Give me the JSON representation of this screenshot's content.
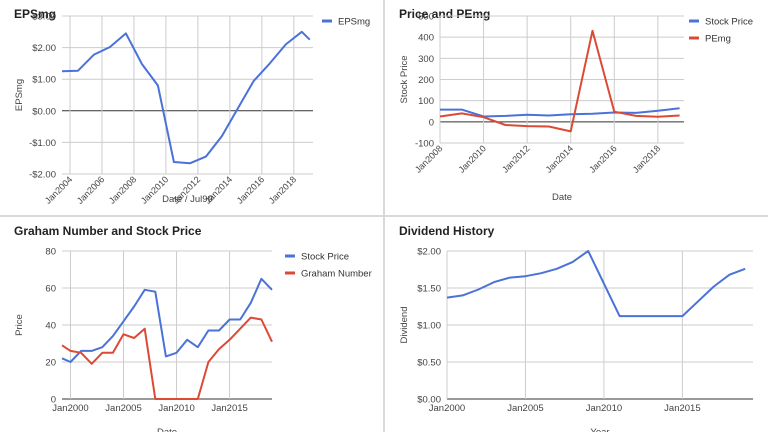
{
  "chart_data": [
    {
      "id": "eps",
      "type": "line",
      "title": "EPSmg",
      "xlabel": "Date / Jul99",
      "ylabel": "EPSmg",
      "ylim": [
        -2,
        3
      ],
      "y_ticks": [
        -2,
        -1,
        0,
        1,
        2,
        3
      ],
      "y_tick_labels": [
        "-$2.00",
        "-$1.00",
        "$0.00",
        "$1.00",
        "$2.00",
        "$3.00"
      ],
      "xlim": [
        2003.5,
        2019.2
      ],
      "x_ticks": [
        2004,
        2006,
        2008,
        2010,
        2012,
        2014,
        2016,
        2018
      ],
      "x_tick_labels": [
        "Jan2004",
        "Jan2006",
        "Jan2008",
        "Jan2010",
        "Jan2012",
        "Jan2014",
        "Jan2016",
        "Jan2018"
      ],
      "x_labels_rotated": true,
      "zero_line": true,
      "legend_position": "top-right",
      "series": [
        {
          "name": "EPSmg",
          "color": "#4a72d8",
          "x": [
            2003.5,
            2004.5,
            2005.5,
            2006.5,
            2007.5,
            2008.5,
            2009.5,
            2010.5,
            2011.5,
            2012.5,
            2013.5,
            2014.5,
            2015.5,
            2016.5,
            2017.5,
            2018.5,
            2019.0
          ],
          "y": [
            1.25,
            1.27,
            1.78,
            2.02,
            2.45,
            1.48,
            0.8,
            -1.62,
            -1.66,
            -1.45,
            -0.8,
            0.08,
            0.95,
            1.5,
            2.1,
            2.5,
            2.25
          ]
        }
      ]
    },
    {
      "id": "price",
      "type": "line",
      "title": "Price and PEmg",
      "xlabel": "Date",
      "ylabel": "Stock Price",
      "ylim": [
        -100,
        500
      ],
      "y_ticks": [
        -100,
        0,
        100,
        200,
        300,
        400,
        500
      ],
      "y_tick_labels": [
        "-100",
        "0",
        "100",
        "200",
        "300",
        "400",
        "500"
      ],
      "xlim": [
        2008.0,
        2019.2
      ],
      "x_ticks": [
        2008,
        2010,
        2012,
        2014,
        2016,
        2018
      ],
      "x_tick_labels": [
        "Jan2008",
        "Jan2010",
        "Jan2012",
        "Jan2014",
        "Jan2016",
        "Jan2018"
      ],
      "x_labels_rotated": true,
      "zero_line": true,
      "legend_position": "top-right",
      "series": [
        {
          "name": "Stock Price",
          "color": "#4a72d8",
          "x": [
            2008.0,
            2009.0,
            2010.0,
            2011.0,
            2012.0,
            2013.0,
            2014.0,
            2015.0,
            2016.0,
            2017.0,
            2018.0,
            2019.0
          ],
          "y": [
            58,
            58,
            25,
            28,
            33,
            30,
            36,
            38,
            44,
            42,
            52,
            64
          ]
        },
        {
          "name": "PEmg",
          "color": "#db4a35",
          "x": [
            2008.0,
            2009.0,
            2010.0,
            2011.0,
            2012.0,
            2013.0,
            2014.0,
            2015.0,
            2016.0,
            2017.0,
            2018.0,
            2019.0
          ],
          "y": [
            25,
            40,
            22,
            -15,
            -20,
            -22,
            -45,
            430,
            48,
            28,
            24,
            30
          ]
        }
      ]
    },
    {
      "id": "graham",
      "type": "line",
      "title": "Graham Number and Stock Price",
      "xlabel": "Date",
      "ylabel": "Price",
      "ylim": [
        0,
        80
      ],
      "y_ticks": [
        0,
        20,
        40,
        60,
        80
      ],
      "y_tick_labels": [
        "0",
        "20",
        "40",
        "60",
        "80"
      ],
      "xlim": [
        1999.2,
        2019.0
      ],
      "x_ticks": [
        2000,
        2005,
        2010,
        2015
      ],
      "x_tick_labels": [
        "Jan2000",
        "Jan2005",
        "Jan2010",
        "Jan2015"
      ],
      "x_labels_rotated": false,
      "zero_line": false,
      "legend_position": "top-right",
      "series": [
        {
          "name": "Stock Price",
          "color": "#4a72d8",
          "x": [
            1999.2,
            2000.0,
            2001.0,
            2002.0,
            2003.0,
            2004.0,
            2005.0,
            2006.0,
            2007.0,
            2008.0,
            2009.0,
            2010.0,
            2011.0,
            2012.0,
            2013.0,
            2014.0,
            2015.0,
            2016.0,
            2017.0,
            2018.0,
            2019.0
          ],
          "y": [
            22,
            20,
            26,
            26,
            28,
            34,
            42,
            50,
            59,
            58,
            23,
            25,
            32,
            28,
            37,
            37,
            43,
            43,
            52,
            65,
            59
          ]
        },
        {
          "name": "Graham Number",
          "color": "#db4a35",
          "x": [
            1999.2,
            2000.0,
            2001.0,
            2002.0,
            2003.0,
            2004.0,
            2005.0,
            2006.0,
            2007.0,
            2008.0,
            2009.0,
            2010.0,
            2011.0,
            2012.0,
            2013.0,
            2014.0,
            2015.0,
            2016.0,
            2017.0,
            2018.0,
            2019.0
          ],
          "y": [
            29,
            26,
            25,
            19,
            25,
            25,
            35,
            33,
            38,
            0,
            0,
            0,
            0,
            0,
            20,
            27,
            32,
            38,
            44,
            43,
            31
          ]
        }
      ]
    },
    {
      "id": "dividend",
      "type": "line",
      "title": "Dividend History",
      "xlabel": "Year",
      "ylabel": "Dividend",
      "ylim": [
        0,
        2
      ],
      "y_ticks": [
        0,
        0.5,
        1,
        1.5,
        2
      ],
      "y_tick_labels": [
        "$0.00",
        "$0.50",
        "$1.00",
        "$1.50",
        "$2.00"
      ],
      "xlim": [
        2000.0,
        2019.5
      ],
      "x_ticks": [
        2000,
        2005,
        2010,
        2015
      ],
      "x_tick_labels": [
        "Jan2000",
        "Jan2005",
        "Jan2010",
        "Jan2015"
      ],
      "x_labels_rotated": false,
      "zero_line": false,
      "legend_position": "none",
      "series": [
        {
          "name": "",
          "color": "#4a72d8",
          "x": [
            2000.0,
            2001.0,
            2002.0,
            2003.0,
            2004.0,
            2005.0,
            2006.0,
            2007.0,
            2008.0,
            2009.0,
            2010.0,
            2011.0,
            2012.0,
            2013.0,
            2014.0,
            2015.0,
            2016.0,
            2017.0,
            2018.0,
            2019.0
          ],
          "y": [
            1.37,
            1.4,
            1.48,
            1.58,
            1.64,
            1.66,
            1.7,
            1.76,
            1.85,
            2.0,
            1.56,
            1.12,
            1.12,
            1.12,
            1.12,
            1.12,
            1.32,
            1.52,
            1.68,
            1.76
          ]
        }
      ]
    }
  ]
}
